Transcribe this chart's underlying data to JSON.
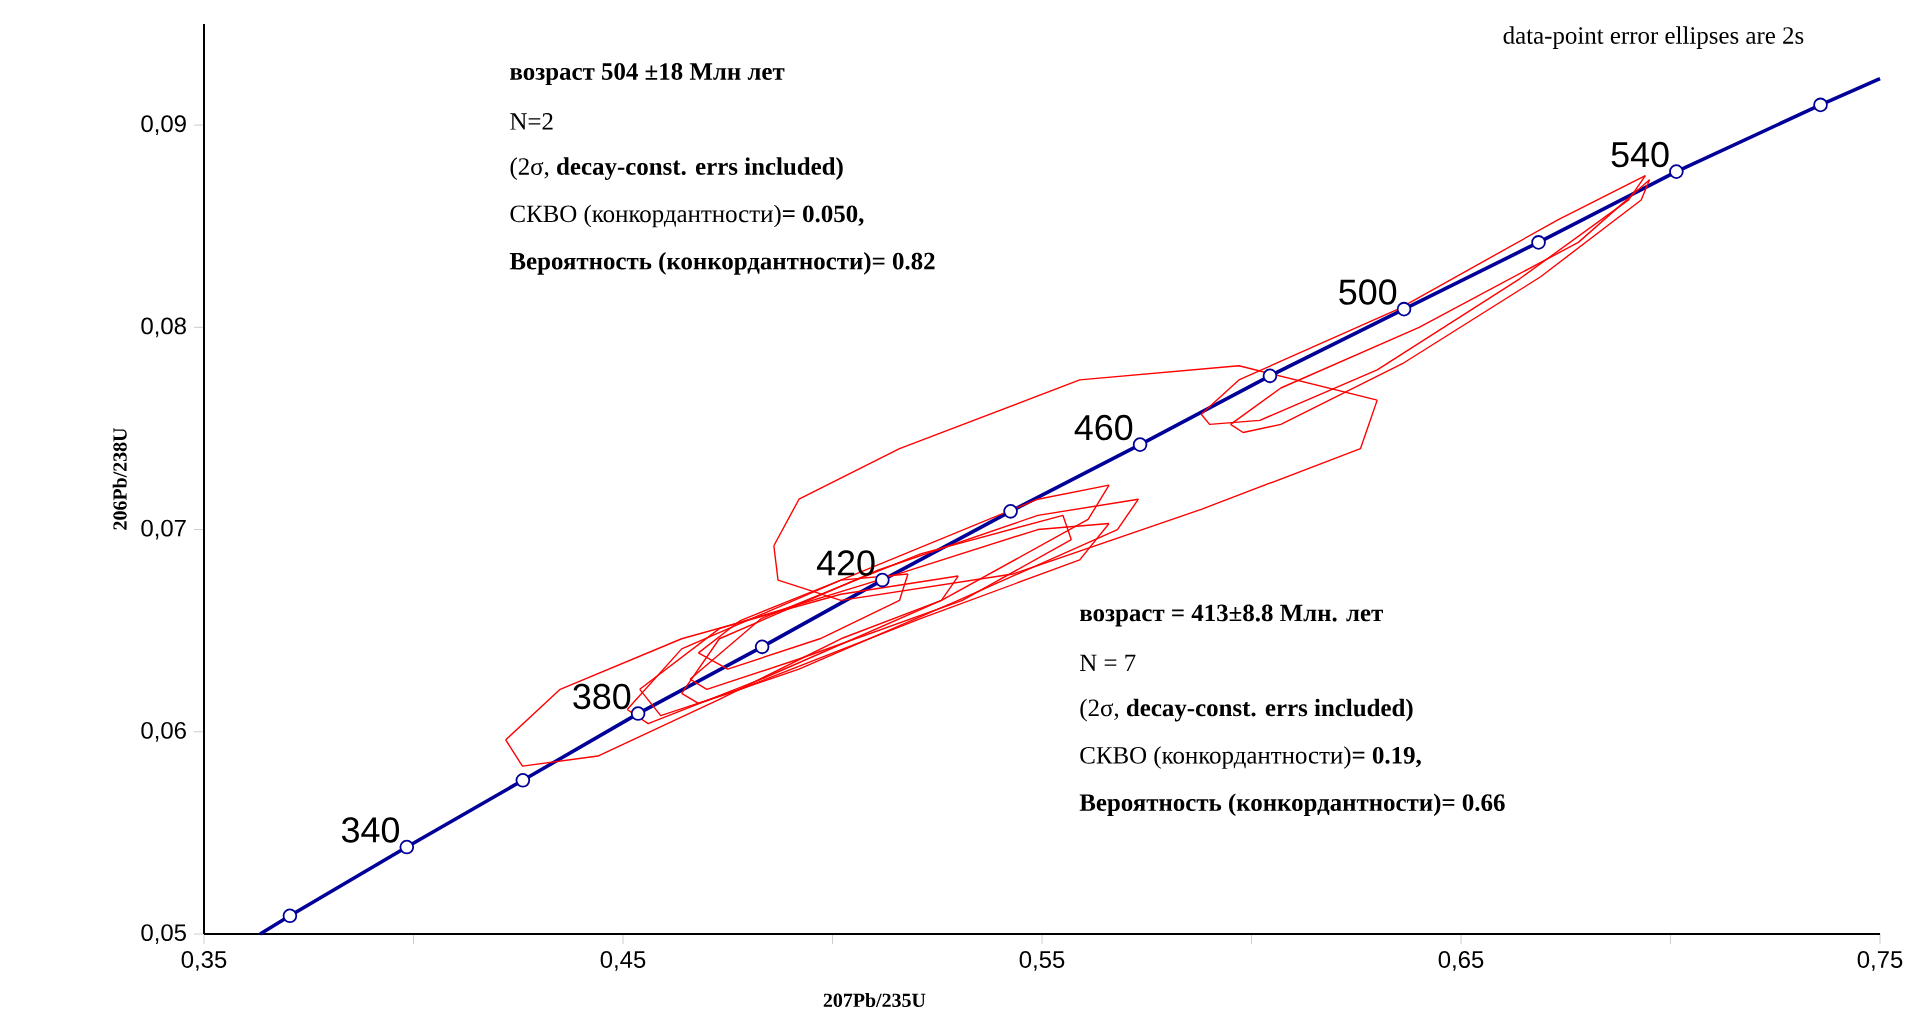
{
  "chart_data": {
    "type": "line",
    "xlabel": "207Pb/235U",
    "ylabel": "206Pb/238U",
    "xlim": [
      0.35,
      0.75
    ],
    "ylim": [
      0.05,
      0.095
    ],
    "xticks": [
      {
        "value": 0.35,
        "label": "0,35"
      },
      {
        "value": 0.4,
        "label": null
      },
      {
        "value": 0.45,
        "label": "0,45"
      },
      {
        "value": 0.5,
        "label": null
      },
      {
        "value": 0.55,
        "label": "0,55"
      },
      {
        "value": 0.6,
        "label": null
      },
      {
        "value": 0.65,
        "label": "0,65"
      },
      {
        "value": 0.7,
        "label": null
      },
      {
        "value": 0.75,
        "label": "0,75"
      }
    ],
    "yticks": [
      {
        "value": 0.05,
        "label": "0,05"
      },
      {
        "value": 0.06,
        "label": "0,06"
      },
      {
        "value": 0.07,
        "label": "0,07"
      },
      {
        "value": 0.08,
        "label": "0,08"
      },
      {
        "value": 0.09,
        "label": "0,09"
      }
    ],
    "series": [
      {
        "color": "#000099",
        "marker": "none",
        "x": [
          0.3634,
          0.3705,
          0.3984,
          0.4261,
          0.4536,
          0.4832,
          0.5119,
          0.5425,
          0.5734,
          0.6044,
          0.6364,
          0.6685,
          0.7014,
          0.7358,
          0.75
        ],
        "values": [
          0.05,
          0.0509,
          0.0543,
          0.0576,
          0.0609,
          0.0642,
          0.0675,
          0.0709,
          0.0742,
          0.0776,
          0.0809,
          0.0842,
          0.0877,
          0.091,
          0.0923
        ]
      },
      {
        "type": "scatter",
        "color": "#000099",
        "marker": "circle",
        "x": [
          0.3705,
          0.3984,
          0.4261,
          0.4536,
          0.4832,
          0.5119,
          0.5425,
          0.5734,
          0.6044,
          0.6364,
          0.6685,
          0.7014,
          0.7358
        ],
        "values": [
          0.0509,
          0.0543,
          0.0576,
          0.0609,
          0.0642,
          0.0675,
          0.0709,
          0.0742,
          0.0776,
          0.0809,
          0.0842,
          0.0877,
          0.091
        ]
      },
      {
        "color": "#ff0000",
        "marker": "none",
        "x": [
          0.486,
          0.492,
          0.516,
          0.559,
          0.597,
          0.63
        ],
        "values": [
          0.0692,
          0.0715,
          0.074,
          0.0774,
          0.0781,
          0.0764
        ]
      },
      {
        "color": "#ff0000",
        "marker": "none",
        "x": [
          0.486,
          0.487,
          0.502,
          0.543,
          0.588,
          0.626,
          0.63
        ],
        "values": [
          0.0692,
          0.0675,
          0.0665,
          0.0678,
          0.071,
          0.074,
          0.0764
        ]
      },
      {
        "color": "#ff0000",
        "marker": "none",
        "x": [
          0.422,
          0.435,
          0.464,
          0.502,
          0.53
        ],
        "values": [
          0.0596,
          0.0621,
          0.0646,
          0.0668,
          0.0677
        ]
      },
      {
        "color": "#ff0000",
        "marker": "none",
        "x": [
          0.422,
          0.426,
          0.444,
          0.473,
          0.502,
          0.526,
          0.53
        ],
        "values": [
          0.0596,
          0.0583,
          0.0588,
          0.0616,
          0.0646,
          0.0665,
          0.0677
        ]
      },
      {
        "color": "#ff0000",
        "marker": "none",
        "x": [
          0.451,
          0.464,
          0.502,
          0.549,
          0.566
        ],
        "values": [
          0.0611,
          0.0641,
          0.0675,
          0.0715,
          0.0722
        ]
      },
      {
        "color": "#ff0000",
        "marker": "none",
        "x": [
          0.451,
          0.456,
          0.483,
          0.526,
          0.561,
          0.566
        ],
        "values": [
          0.0611,
          0.0604,
          0.0626,
          0.0665,
          0.0705,
          0.0722
        ]
      },
      {
        "color": "#ff0000",
        "marker": "none",
        "x": [
          0.464,
          0.473,
          0.511,
          0.549,
          0.573
        ],
        "values": [
          0.0619,
          0.0646,
          0.068,
          0.0707,
          0.0715
        ]
      },
      {
        "color": "#ff0000",
        "marker": "none",
        "x": [
          0.464,
          0.468,
          0.492,
          0.53,
          0.568,
          0.573
        ],
        "values": [
          0.0619,
          0.0614,
          0.0631,
          0.0665,
          0.07,
          0.0715
        ]
      },
      {
        "color": "#ff0000",
        "marker": "none",
        "x": [
          0.468,
          0.478,
          0.502,
          0.518
        ],
        "values": [
          0.0639,
          0.0655,
          0.0675,
          0.0678
        ]
      },
      {
        "color": "#ff0000",
        "marker": "none",
        "x": [
          0.468,
          0.475,
          0.497,
          0.516,
          0.518
        ],
        "values": [
          0.0639,
          0.0631,
          0.0646,
          0.0665,
          0.0678
        ]
      },
      {
        "color": "#ff0000",
        "marker": "none",
        "x": [
          0.466,
          0.483,
          0.521,
          0.555,
          0.557
        ],
        "values": [
          0.0626,
          0.0656,
          0.0688,
          0.0707,
          0.0695
        ]
      },
      {
        "color": "#ff0000",
        "marker": "none",
        "x": [
          0.466,
          0.47,
          0.492,
          0.531,
          0.557
        ],
        "values": [
          0.0626,
          0.0621,
          0.0636,
          0.0665,
          0.0695
        ]
      },
      {
        "color": "#ff0000",
        "marker": "none",
        "x": [
          0.454,
          0.473,
          0.511,
          0.549,
          0.566
        ],
        "values": [
          0.0621,
          0.0651,
          0.0675,
          0.07,
          0.0703
        ]
      },
      {
        "color": "#ff0000",
        "marker": "none",
        "x": [
          0.454,
          0.459,
          0.478,
          0.521,
          0.559,
          0.566
        ],
        "values": [
          0.0621,
          0.0608,
          0.0621,
          0.0656,
          0.0685,
          0.0703
        ]
      },
      {
        "color": "#ff0000",
        "marker": "none",
        "x": [
          0.588,
          0.597,
          0.635,
          0.673,
          0.694
        ],
        "values": [
          0.0757,
          0.0774,
          0.0809,
          0.0853,
          0.0875
        ]
      },
      {
        "color": "#ff0000",
        "marker": "none",
        "x": [
          0.588,
          0.59,
          0.602,
          0.63,
          0.664,
          0.69,
          0.694
        ],
        "values": [
          0.0757,
          0.0752,
          0.0754,
          0.0779,
          0.0824,
          0.0863,
          0.0875
        ]
      },
      {
        "color": "#ff0000",
        "marker": "none",
        "x": [
          0.595,
          0.607,
          0.64,
          0.678,
          0.695
        ],
        "values": [
          0.0752,
          0.077,
          0.08,
          0.0842,
          0.0873
        ]
      },
      {
        "color": "#ff0000",
        "marker": "none",
        "x": [
          0.595,
          0.598,
          0.607,
          0.636,
          0.669,
          0.693,
          0.695
        ],
        "values": [
          0.0752,
          0.0748,
          0.0752,
          0.0782,
          0.0825,
          0.0863,
          0.0873
        ]
      }
    ],
    "annotations": [
      "**возраст 504 ±18 Млн лет**",
      "N=2",
      "(2σ, **decay-const. errs included)**",
      "СКВО (конкордантности)**= 0.050,**",
      "**Вероятность (конкордантности)= 0.82**",
      "**возраст = 413±8.8 Млн. лет**",
      "N = 7",
      "(2σ, **decay-const. errs included)**",
      "СКВО (конкордантности)**= 0.19,**",
      "**Вероятность (конкордантности)= 0.66**",
      "data-point error ellipses are 2s",
      {
        "text": "340",
        "x": 0.3984,
        "y": 0.0543
      },
      {
        "text": "380",
        "x": 0.4536,
        "y": 0.0609
      },
      {
        "text": "420",
        "x": 0.5119,
        "y": 0.0675
      },
      {
        "text": "460",
        "x": 0.5734,
        "y": 0.0742
      },
      {
        "text": "500",
        "x": 0.6364,
        "y": 0.0809
      },
      {
        "text": "540",
        "x": 0.7014,
        "y": 0.0877
      }
    ]
  }
}
